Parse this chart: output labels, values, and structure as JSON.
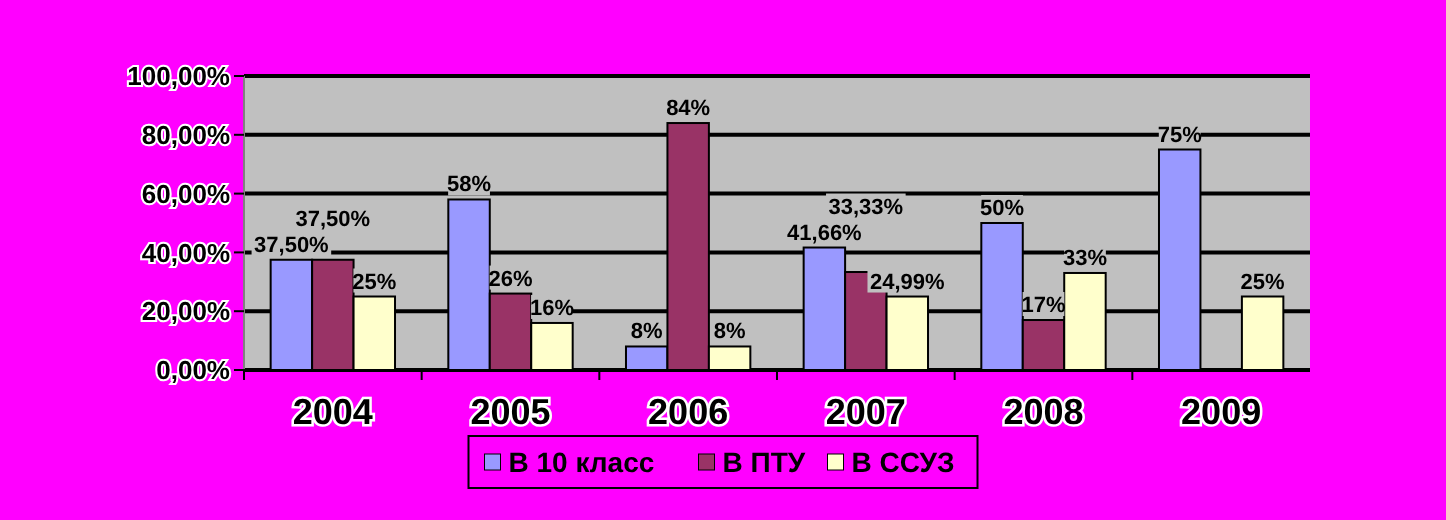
{
  "chart_data": {
    "type": "bar",
    "categories": [
      "2004",
      "2005",
      "2006",
      "2007",
      "2008",
      "2009"
    ],
    "series": [
      {
        "name": "В 10 класс",
        "color": "#9999ff",
        "values": [
          37.5,
          58,
          8,
          41.66,
          50,
          75
        ],
        "value_labels": [
          "37,50%",
          "58%",
          "8%",
          "41,66%",
          "50%",
          "75%"
        ]
      },
      {
        "name": "В ПТУ",
        "color": "#993366",
        "values": [
          37.5,
          26,
          84,
          33.33,
          17,
          null
        ],
        "value_labels": [
          "37,50%",
          "26%",
          "84%",
          "33,33%",
          "17%",
          null
        ]
      },
      {
        "name": "В ССУЗ",
        "color": "#ffffcc",
        "values": [
          25,
          16,
          8,
          24.99,
          33,
          25
        ],
        "value_labels": [
          "25%",
          "16%",
          "8%",
          "24,99%",
          "33%",
          "25%"
        ]
      }
    ],
    "ylim": [
      0,
      100
    ],
    "yticks": [
      {
        "value": 0,
        "label": "0,00%"
      },
      {
        "value": 20,
        "label": "20,00%"
      },
      {
        "value": 40,
        "label": "40,00%"
      },
      {
        "value": 60,
        "label": "60,00%"
      },
      {
        "value": 80,
        "label": "80,00%"
      },
      {
        "value": 100,
        "label": "100,00%"
      }
    ],
    "grid": "y",
    "legend": "bottom"
  }
}
